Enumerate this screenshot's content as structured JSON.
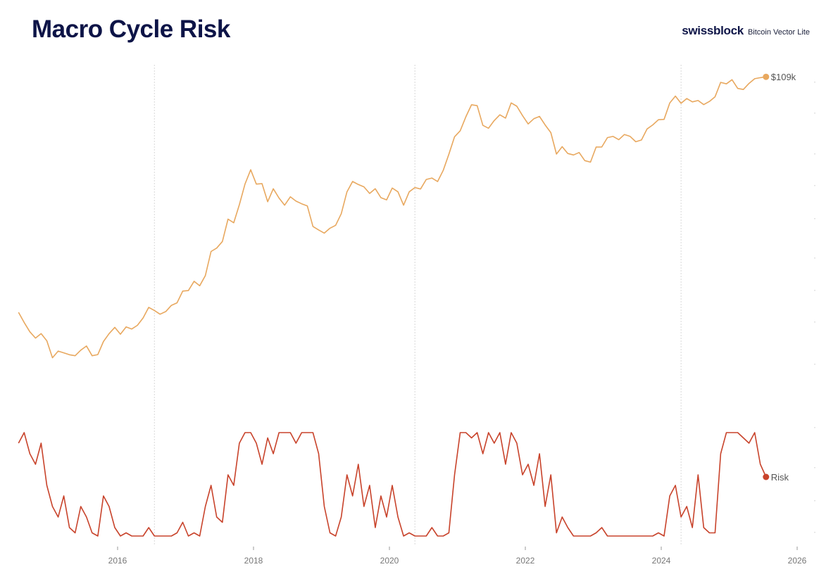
{
  "header": {
    "title": "Macro Cycle Risk",
    "brand_logo": "swissblock",
    "brand_product": "Bitcoin Vector Lite"
  },
  "chart_data": [
    {
      "type": "line",
      "series_label": "$109k",
      "color": "#e8a85f",
      "yscale": "log",
      "ylim": [
        135,
        136000
      ],
      "xlim": [
        "2014-07",
        "2026-01"
      ],
      "x_tick_labels": [
        "2016",
        "2018",
        "2020",
        "2022",
        "2024",
        "2026"
      ],
      "vertical_markers": [
        "2016-07",
        "2020-05",
        "2024-04"
      ],
      "x": [
        "2014-07",
        "2014-08",
        "2014-09",
        "2014-10",
        "2014-11",
        "2014-12",
        "2015-01",
        "2015-02",
        "2015-03",
        "2015-04",
        "2015-05",
        "2015-06",
        "2015-07",
        "2015-08",
        "2015-09",
        "2015-10",
        "2015-11",
        "2015-12",
        "2016-01",
        "2016-02",
        "2016-03",
        "2016-04",
        "2016-05",
        "2016-06",
        "2016-07",
        "2016-08",
        "2016-09",
        "2016-10",
        "2016-11",
        "2016-12",
        "2017-01",
        "2017-02",
        "2017-03",
        "2017-04",
        "2017-05",
        "2017-06",
        "2017-07",
        "2017-08",
        "2017-09",
        "2017-10",
        "2017-11",
        "2017-12",
        "2018-01",
        "2018-02",
        "2018-03",
        "2018-04",
        "2018-05",
        "2018-06",
        "2018-07",
        "2018-08",
        "2018-09",
        "2018-10",
        "2018-11",
        "2018-12",
        "2019-01",
        "2019-02",
        "2019-03",
        "2019-04",
        "2019-05",
        "2019-06",
        "2019-07",
        "2019-08",
        "2019-09",
        "2019-10",
        "2019-11",
        "2019-12",
        "2020-01",
        "2020-02",
        "2020-03",
        "2020-04",
        "2020-05",
        "2020-06",
        "2020-07",
        "2020-08",
        "2020-09",
        "2020-10",
        "2020-11",
        "2020-12",
        "2021-01",
        "2021-02",
        "2021-03",
        "2021-04",
        "2021-05",
        "2021-06",
        "2021-07",
        "2021-08",
        "2021-09",
        "2021-10",
        "2021-11",
        "2021-12",
        "2022-01",
        "2022-02",
        "2022-03",
        "2022-04",
        "2022-05",
        "2022-06",
        "2022-07",
        "2022-08",
        "2022-09",
        "2022-10",
        "2022-11",
        "2022-12",
        "2023-01",
        "2023-02",
        "2023-03",
        "2023-04",
        "2023-05",
        "2023-06",
        "2023-07",
        "2023-08",
        "2023-09",
        "2023-10",
        "2023-11",
        "2023-12",
        "2024-01",
        "2024-02",
        "2024-03",
        "2024-04",
        "2024-05",
        "2024-06",
        "2024-07",
        "2024-08",
        "2024-09",
        "2024-10",
        "2024-11",
        "2024-12",
        "2025-01",
        "2025-02",
        "2025-03",
        "2025-04",
        "2025-05",
        "2025-06",
        "2025-07"
      ],
      "values": [
        600,
        480,
        390,
        340,
        375,
        320,
        220,
        255,
        245,
        235,
        230,
        260,
        285,
        230,
        236,
        315,
        375,
        430,
        370,
        435,
        415,
        450,
        530,
        670,
        625,
        575,
        610,
        700,
        740,
        960,
        970,
        1190,
        1080,
        1350,
        2300,
        2480,
        2870,
        4700,
        4340,
        6470,
        10200,
        14000,
        10200,
        10300,
        6900,
        9200,
        7500,
        6400,
        7700,
        7000,
        6600,
        6300,
        4000,
        3700,
        3450,
        3850,
        4100,
        5300,
        8600,
        10800,
        10100,
        9600,
        8300,
        9200,
        7550,
        7200,
        9350,
        8600,
        6400,
        8600,
        9450,
        9150,
        11300,
        11650,
        10780,
        13800,
        19700,
        29000,
        33100,
        45200,
        58900,
        57700,
        37300,
        35000,
        41500,
        47100,
        43800,
        61300,
        57000,
        46300,
        38500,
        43200,
        45500,
        37700,
        31800,
        19800,
        23300,
        20050,
        19400,
        20500,
        17150,
        16550,
        23100,
        23150,
        28500,
        29250,
        27200,
        30500,
        29250,
        26000,
        27000,
        34500,
        37700,
        42300,
        42600,
        61200,
        71300,
        60700,
        67500,
        62700,
        64600,
        59000,
        63300,
        70200,
        96400,
        93400,
        102400,
        84400,
        82500,
        94200,
        104600,
        107100,
        109000
      ]
    },
    {
      "type": "line",
      "series_label": "Risk",
      "color": "#c8432b",
      "ylim": [
        0,
        1
      ],
      "x_ref": "same as price series",
      "values": [
        0.9,
        1,
        0.8,
        0.7,
        0.9,
        0.5,
        0.3,
        0.2,
        0.4,
        0.1,
        0.05,
        0.3,
        0.2,
        0.05,
        0.02,
        0.4,
        0.3,
        0.1,
        0.02,
        0.05,
        0.02,
        0.02,
        0.02,
        0.1,
        0.02,
        0.02,
        0.02,
        0.02,
        0.05,
        0.15,
        0.02,
        0.05,
        0.02,
        0.3,
        0.5,
        0.2,
        0.15,
        0.6,
        0.5,
        0.9,
        1,
        1,
        0.9,
        0.7,
        0.95,
        0.8,
        1,
        1,
        1,
        0.9,
        1,
        1,
        1,
        0.8,
        0.3,
        0.05,
        0.02,
        0.2,
        0.6,
        0.4,
        0.7,
        0.3,
        0.5,
        0.1,
        0.4,
        0.2,
        0.5,
        0.2,
        0.02,
        0.05,
        0.02,
        0.02,
        0.02,
        0.1,
        0.02,
        0.02,
        0.05,
        0.6,
        1,
        1,
        0.95,
        1,
        0.8,
        1,
        0.9,
        1,
        0.7,
        1,
        0.9,
        0.6,
        0.7,
        0.5,
        0.8,
        0.3,
        0.6,
        0.05,
        0.2,
        0.1,
        0.02,
        0.02,
        0.02,
        0.02,
        0.05,
        0.1,
        0.02,
        0.02,
        0.02,
        0.02,
        0.02,
        0.02,
        0.02,
        0.02,
        0.02,
        0.05,
        0.02,
        0.4,
        0.5,
        0.2,
        0.3,
        0.1,
        0.6,
        0.1,
        0.05,
        0.05,
        0.8,
        1,
        1,
        1,
        0.95,
        0.9,
        1,
        0.7,
        0.58
      ]
    }
  ]
}
